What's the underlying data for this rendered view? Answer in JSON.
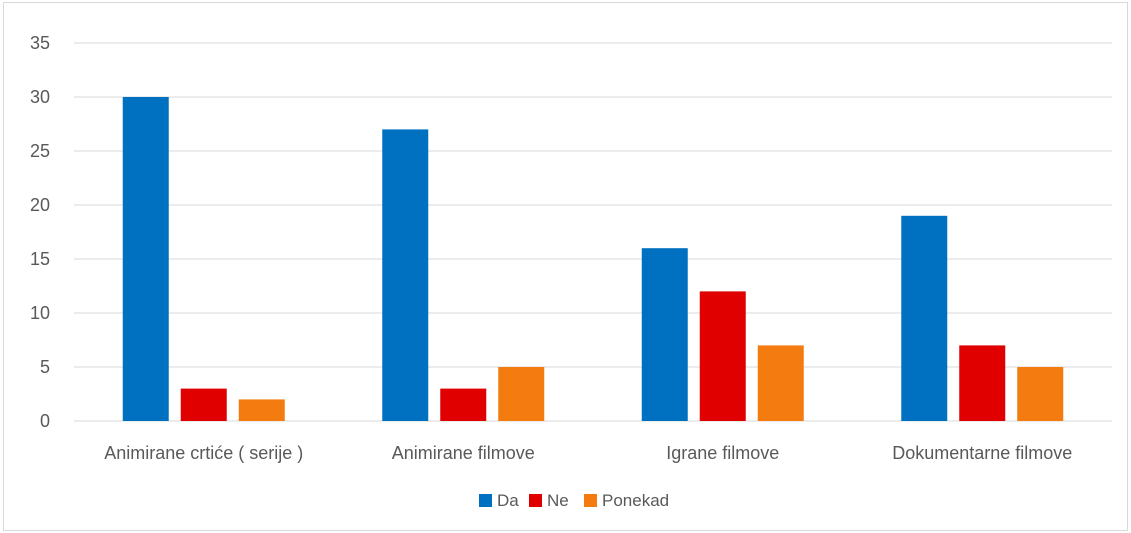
{
  "chart_data": {
    "type": "bar",
    "title": "",
    "xlabel": "",
    "ylabel": "",
    "categories": [
      "Animirane crtiće ( serije )",
      "Animirane filmove",
      "Igrane filmove",
      "Dokumentarne filmove"
    ],
    "series": [
      {
        "name": "Da",
        "color": "#0070c0",
        "values": [
          30,
          27,
          16,
          19
        ]
      },
      {
        "name": "Ne",
        "color": "#e00000",
        "values": [
          3,
          3,
          12,
          7
        ]
      },
      {
        "name": "Ponekad",
        "color": "#f47b0f",
        "values": [
          2,
          5,
          7,
          5
        ]
      }
    ],
    "ylim": [
      0,
      35
    ],
    "yticks": [
      "0",
      "5",
      "10",
      "15",
      "20",
      "25",
      "30",
      "35"
    ],
    "grid": true,
    "legend_position": "bottom"
  }
}
